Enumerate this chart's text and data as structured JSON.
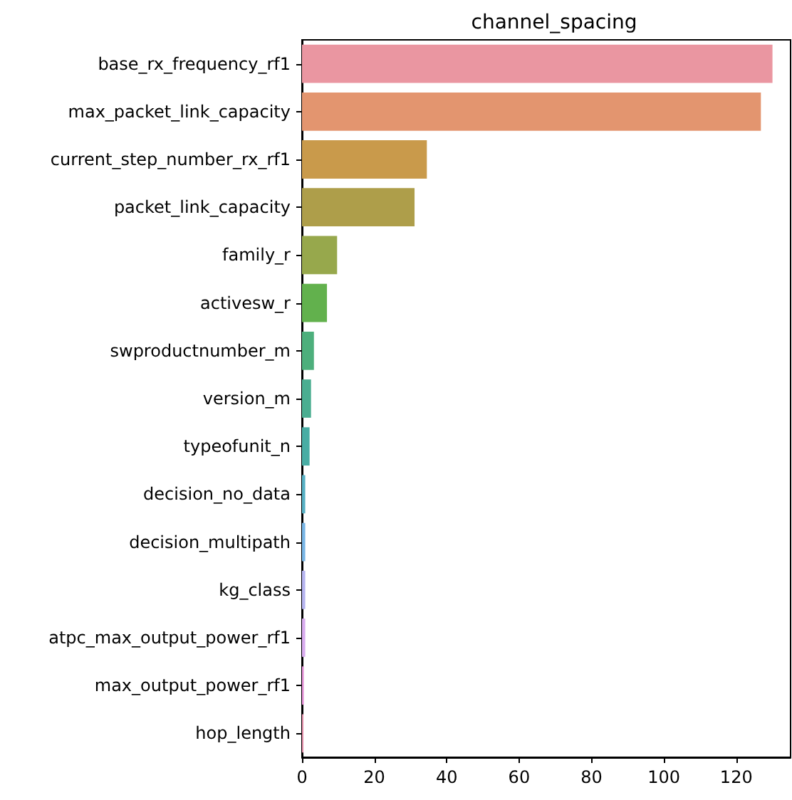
{
  "chart_data": {
    "type": "bar",
    "orientation": "horizontal",
    "title": "channel_spacing",
    "categories": [
      "base_rx_frequency_rf1",
      "max_packet_link_capacity",
      "current_step_number_rx_rf1",
      "packet_link_capacity",
      "family_r",
      "activesw_r",
      "swproductnumber_m",
      "version_m",
      "typeofunit_n",
      "decision_no_data",
      "decision_multipath",
      "kg_class",
      "atpc_max_output_power_rf1",
      "max_output_power_rf1",
      "hop_length"
    ],
    "values": [
      130,
      126.8,
      34.5,
      31.1,
      9.7,
      6.9,
      3.3,
      2.5,
      2.1,
      0.9,
      0.9,
      0.9,
      0.9,
      0.5,
      0.4
    ],
    "colors": [
      "#ea96a1",
      "#e3956f",
      "#c99a4b",
      "#ae9e4a",
      "#97a84c",
      "#62b14d",
      "#4daf7c",
      "#4bae91",
      "#49ada4",
      "#57b0c4",
      "#79b6e6",
      "#b6b4f0",
      "#d9acef",
      "#e48fd6",
      "#e48ea9"
    ],
    "xlim": [
      0,
      135
    ],
    "xticks": [
      0,
      20,
      40,
      60,
      80,
      100,
      120
    ],
    "grid": false
  }
}
